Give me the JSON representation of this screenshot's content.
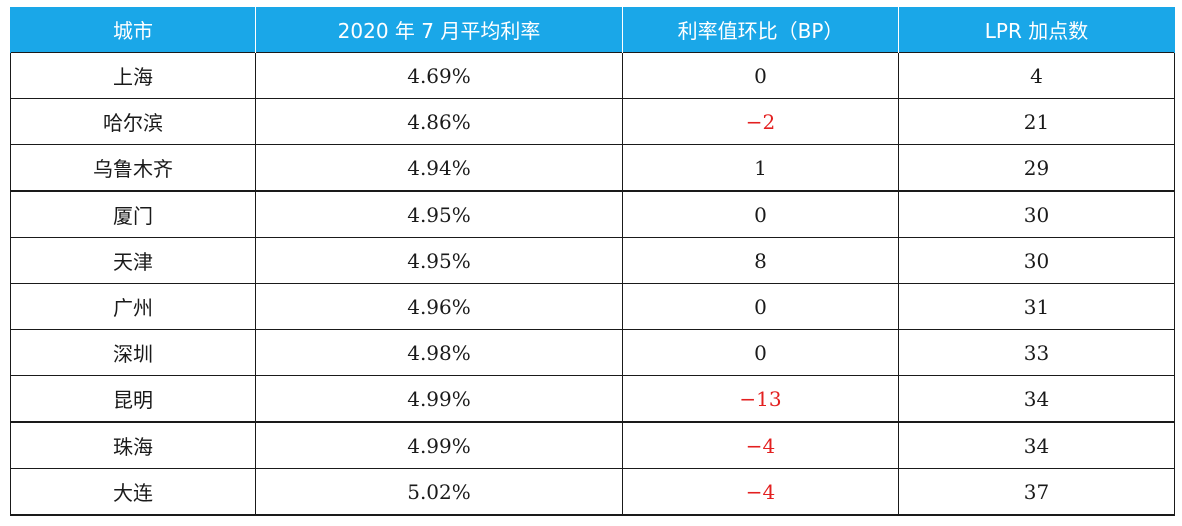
{
  "table": {
    "headers": [
      "城市",
      "2020 年 7 月平均利率",
      "利率值环比（BP）",
      "LPR 加点数"
    ],
    "rows": [
      {
        "city": "上海",
        "rate": "4.69%",
        "change": "0",
        "lpr": "4"
      },
      {
        "city": "哈尔滨",
        "rate": "4.86%",
        "change": "−2",
        "lpr": "21"
      },
      {
        "city": "乌鲁木齐",
        "rate": "4.94%",
        "change": "1",
        "lpr": "29"
      },
      {
        "city": "厦门",
        "rate": "4.95%",
        "change": "0",
        "lpr": "30"
      },
      {
        "city": "天津",
        "rate": "4.95%",
        "change": "8",
        "lpr": "30"
      },
      {
        "city": "广州",
        "rate": "4.96%",
        "change": "0",
        "lpr": "31"
      },
      {
        "city": "深圳",
        "rate": "4.98%",
        "change": "0",
        "lpr": "33"
      },
      {
        "city": "昆明",
        "rate": "4.99%",
        "change": "−13",
        "lpr": "34"
      },
      {
        "city": "珠海",
        "rate": "4.99%",
        "change": "−4",
        "lpr": "34"
      },
      {
        "city": "大连",
        "rate": "5.02%",
        "change": "−4",
        "lpr": "37"
      }
    ]
  },
  "colors": {
    "header_bg": "#1aa7e8",
    "header_text": "#ffffff",
    "negative": "#e32020",
    "text": "#1a1a1a"
  }
}
